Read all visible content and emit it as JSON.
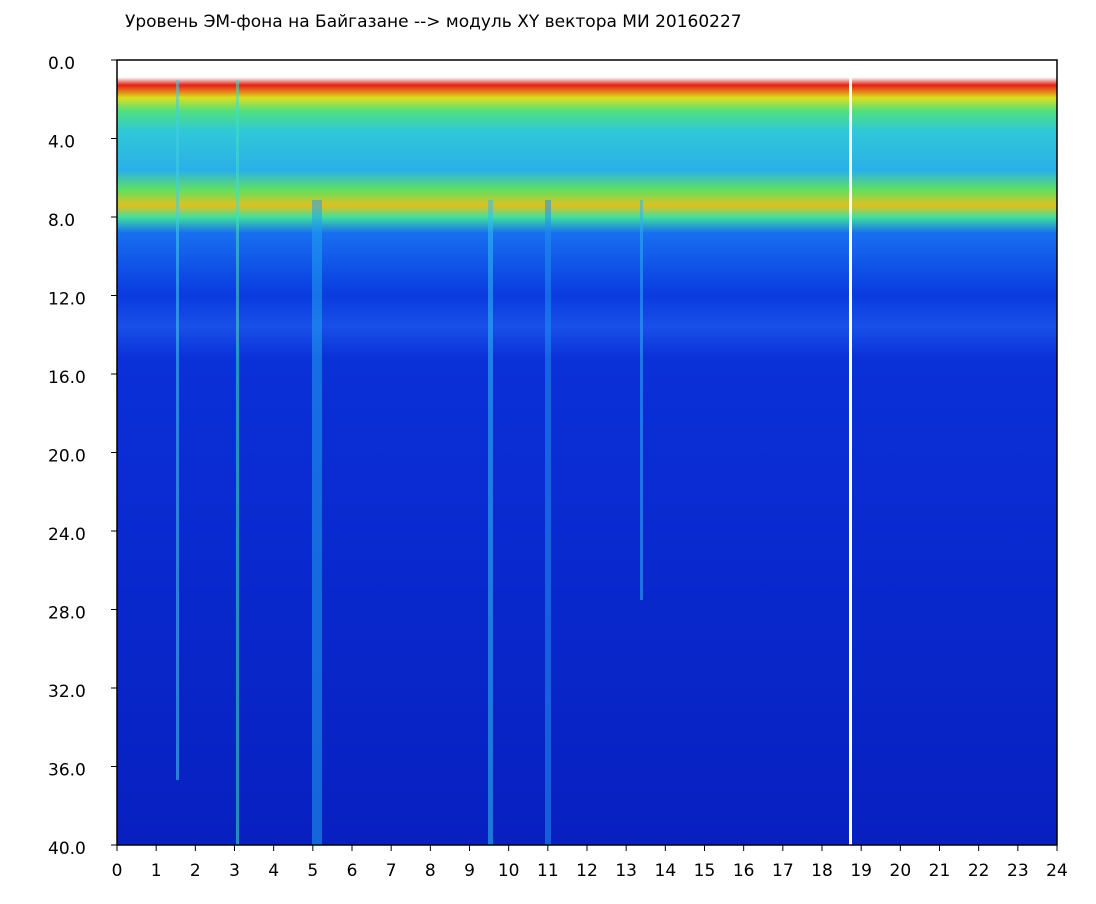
{
  "chart_data": {
    "type": "spectrogram",
    "title": "Уровень ЭМ-фона на Байгазане  -->  модуль XY вектора МИ  20160227",
    "xlim": [
      0,
      24
    ],
    "xticks": [
      0,
      1,
      2,
      3,
      4,
      5,
      6,
      7,
      8,
      9,
      10,
      11,
      12,
      13,
      14,
      15,
      16,
      17,
      18,
      19,
      20,
      21,
      22,
      23,
      24
    ],
    "ylim": [
      0,
      40
    ],
    "y_inverted": true,
    "yticks": [
      {
        "value": 0,
        "label": "0.0"
      },
      {
        "value": 4,
        "label": "4.0"
      },
      {
        "value": 8,
        "label": "8.0"
      },
      {
        "value": 12,
        "label": "12.0"
      },
      {
        "value": 16,
        "label": "16.0"
      },
      {
        "value": 20,
        "label": "20.0"
      },
      {
        "value": 24,
        "label": "24.0"
      },
      {
        "value": 28,
        "label": "28.0"
      },
      {
        "value": 32,
        "label": "32.0"
      },
      {
        "value": 36,
        "label": "36.0"
      },
      {
        "value": 40,
        "label": "40.0"
      }
    ]
  }
}
